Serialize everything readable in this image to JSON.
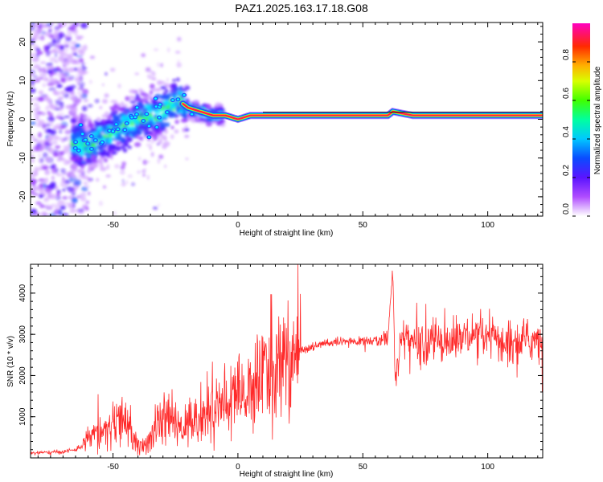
{
  "title": "PAZ1.2025.163.17.18.G08",
  "colors": {
    "snr_line": "#ff2a2a",
    "ridge_core": "#ff1f4a",
    "axis": "#000000",
    "frame": "#ffffff"
  },
  "chart_data": [
    {
      "type": "heatmap",
      "title": "",
      "xlabel": "Height of straight line (km)",
      "ylabel": "Frequency (Hz)",
      "xlim": [
        -83,
        122
      ],
      "ylim": [
        -25,
        25
      ],
      "xticks": [
        "-50",
        "0",
        "50",
        "100"
      ],
      "yticks": [
        "20",
        "10",
        "0",
        "-10",
        "-20"
      ],
      "ridge": {
        "x": [
          -65,
          -60,
          -55,
          -50,
          -45,
          -40,
          -35,
          -30,
          -27,
          -24,
          -20,
          -15,
          -10,
          -5,
          0,
          5,
          10,
          20,
          40,
          60,
          62,
          70,
          80,
          90,
          100,
          110,
          122
        ],
        "freq": [
          -6,
          -7,
          -5,
          -3,
          -2,
          0,
          1,
          2,
          4,
          5,
          3,
          2,
          1,
          1,
          0,
          1,
          1,
          1,
          1,
          1,
          2,
          1,
          1,
          1,
          1,
          1,
          1
        ]
      },
      "colorbar": {
        "label": "Normalized spectral amplitude",
        "ticks": [
          "0.0",
          "0.2",
          "0.4",
          "0.6",
          "0.8"
        ],
        "range": [
          0,
          1
        ],
        "colormap": "rainbow (magenta-blue-cyan-green-yellow-red-magenta)"
      },
      "grid": false
    },
    {
      "type": "line",
      "title": "",
      "xlabel": "Height of straight line (km)",
      "ylabel": "SNR (10 * v/v)",
      "xlim": [
        -83,
        122
      ],
      "ylim": [
        0,
        4700
      ],
      "xticks": [
        "-50",
        "0",
        "50",
        "100"
      ],
      "yticks": [
        "1000",
        "2000",
        "3000",
        "4000"
      ],
      "series": [
        {
          "x": [
            -83,
            -75,
            -70,
            -65,
            -62,
            -58,
            -55,
            -50,
            -47,
            -44,
            -42,
            -40,
            -38,
            -36,
            -33,
            -30,
            -27,
            -24,
            -20,
            -15,
            -10,
            -5,
            0,
            5,
            10,
            15,
            20,
            25,
            30,
            35,
            40,
            45,
            50,
            55,
            58,
            60,
            62,
            63,
            65,
            70,
            75,
            80,
            85,
            90,
            95,
            100,
            105,
            110,
            115,
            122
          ],
          "values": [
            120,
            130,
            150,
            200,
            300,
            500,
            650,
            750,
            900,
            800,
            400,
            300,
            250,
            300,
            700,
            900,
            950,
            700,
            850,
            1000,
            1150,
            1300,
            1500,
            1700,
            1950,
            2150,
            2400,
            2600,
            2700,
            2780,
            2800,
            2820,
            2830,
            2850,
            2870,
            2900,
            4600,
            1900,
            2800,
            2850,
            2750,
            2900,
            2800,
            2950,
            2850,
            2900,
            2850,
            2800,
            2850,
            2900
          ]
        }
      ],
      "grid": false
    }
  ]
}
